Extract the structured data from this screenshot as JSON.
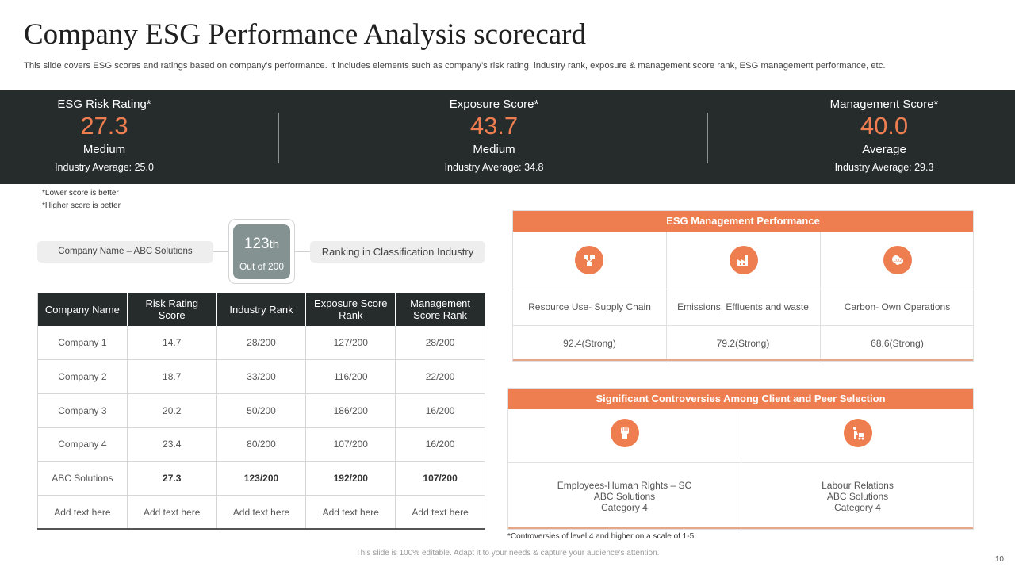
{
  "header": {
    "title": "Company ESG Performance Analysis scorecard",
    "subtitle": "This slide covers ESG scores and ratings based on company’s performance. It includes elements such as company’s risk rating, industry rank, exposure & management score rank, ESG management performance, etc."
  },
  "scores": [
    {
      "label": "ESG Risk Rating*",
      "value": "27.3",
      "level": "Medium",
      "industry_avg": "Industry Average:  25.0"
    },
    {
      "label": "Exposure Score*",
      "value": "43.7",
      "level": "Medium",
      "industry_avg": "Industry Average:  34.8"
    },
    {
      "label": "Management Score*",
      "value": "40.0",
      "level": "Average",
      "industry_avg": "Industry Average:  29.3"
    }
  ],
  "notes": {
    "lower": "*Lower score is better",
    "higher": "*Higher   score is better"
  },
  "ranking": {
    "company_name": "Company Name – ABC Solutions",
    "rank_number": "123",
    "rank_suffix": "th",
    "out_of": "Out of 200",
    "ranking_label": "Ranking in Classification Industry"
  },
  "company_table": {
    "headers": [
      "Company Name",
      "Risk Rating Score",
      "Industry Rank",
      "Exposure Score Rank",
      "Management Score Rank"
    ],
    "rows": [
      [
        "Company 1",
        "14.7",
        "28/200",
        "127/200",
        "28/200"
      ],
      [
        "Company 2",
        "18.7",
        "33/200",
        "116/200",
        "22/200"
      ],
      [
        "Company 3",
        "20.2",
        "50/200",
        "186/200",
        "16/200"
      ],
      [
        "Company 4",
        "23.4",
        "80/200",
        "107/200",
        "16/200"
      ],
      [
        "ABC Solutions",
        "27.3",
        "123/200",
        "192/200",
        "107/200"
      ],
      [
        "Add text here",
        "Add text here",
        "Add text here",
        "Add text here",
        "Add text here"
      ]
    ]
  },
  "esg_management": {
    "title": "ESG Management Performance",
    "items": [
      {
        "icon": "supply-chain-icon",
        "label": "Resource Use- Supply Chain",
        "score": "92.4(Strong)"
      },
      {
        "icon": "factory-icon",
        "label": "Emissions, Effluents and waste",
        "score": "79.2(Strong)"
      },
      {
        "icon": "carbon-icon",
        "label": "Carbon- Own Operations",
        "score": "68.6(Strong)"
      }
    ]
  },
  "controversies": {
    "title": "Significant Controversies  Among Client and Peer Selection",
    "items": [
      {
        "icon": "raised-fist-icon",
        "line1": "Employees-Human Rights – SC",
        "line2": "ABC Solutions",
        "line3": "Category 4"
      },
      {
        "icon": "labour-worker-icon",
        "line1": "Labour Relations",
        "line2": "ABC Solutions",
        "line3": "Category 4"
      }
    ],
    "footnote": "*Controversies of level 4 and higher on a scale of 1-5"
  },
  "footer": {
    "text": "This slide is 100% editable. Adapt it to your needs & capture your audience’s attention.",
    "page_number": "10"
  },
  "colors": {
    "accent": "#ee7e4f",
    "dark": "#262b2b",
    "rank_box": "#849292"
  }
}
